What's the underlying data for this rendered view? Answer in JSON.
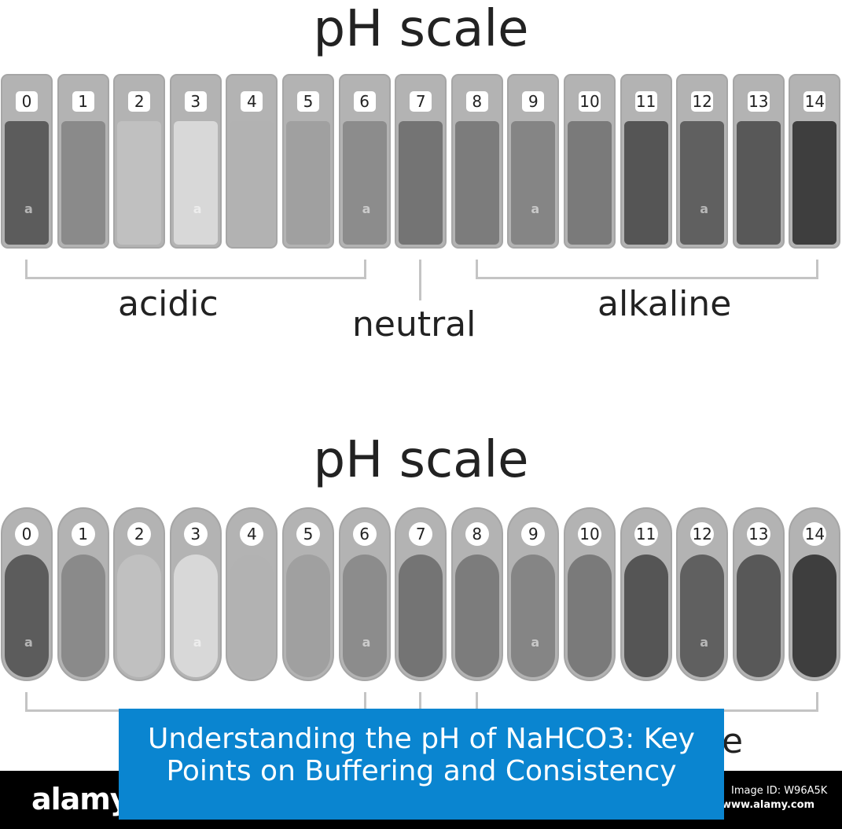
{
  "top_diagram": {
    "title": "pH scale",
    "labels": {
      "acidic": "acidic",
      "neutral": "neutral",
      "alkaline": "alkaline"
    }
  },
  "bottom_diagram": {
    "title": "pH scale",
    "partial_label": "e"
  },
  "scale": [
    {
      "value": "0",
      "color": "#5c5c5c"
    },
    {
      "value": "1",
      "color": "#8a8a8a"
    },
    {
      "value": "2",
      "color": "#c0c0c0"
    },
    {
      "value": "3",
      "color": "#d8d8d8"
    },
    {
      "value": "4",
      "color": "#b2b2b2"
    },
    {
      "value": "5",
      "color": "#a0a0a0"
    },
    {
      "value": "6",
      "color": "#8c8c8c"
    },
    {
      "value": "7",
      "color": "#747474"
    },
    {
      "value": "8",
      "color": "#7c7c7c"
    },
    {
      "value": "9",
      "color": "#858585"
    },
    {
      "value": "10",
      "color": "#7a7a7a"
    },
    {
      "value": "11",
      "color": "#555555"
    },
    {
      "value": "12",
      "color": "#606060"
    },
    {
      "value": "13",
      "color": "#585858"
    },
    {
      "value": "14",
      "color": "#3e3e3e"
    }
  ],
  "watermark": {
    "brand": "alamy",
    "glyph": "a",
    "image_id": "Image ID: W96A5K",
    "site": "www.alamy.com"
  },
  "banner": {
    "text": "Understanding the pH of NaHCO3: Key Points on Buffering and Consistency",
    "color": "#0a85d0"
  }
}
